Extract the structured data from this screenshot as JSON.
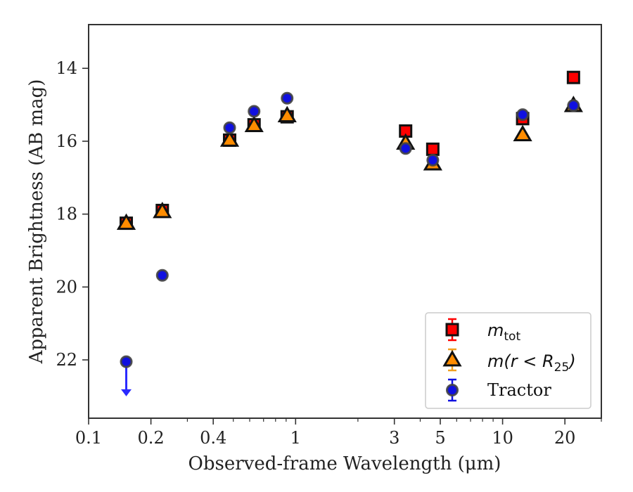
{
  "chart_data": {
    "type": "scatter",
    "xlabel": "Observed-frame Wavelength (μm)",
    "ylabel": "Apparent Brightness (AB mag)",
    "x_scale": "log",
    "xlim": [
      0.1,
      30
    ],
    "ylim": [
      23.6,
      12.8
    ],
    "y_inverted": true,
    "x_ticks": [
      0.1,
      0.2,
      0.4,
      1,
      3,
      5,
      10,
      20
    ],
    "x_tick_labels": [
      "0.1",
      "0.2",
      "0.4",
      "1",
      "3",
      "5",
      "10",
      "20"
    ],
    "y_ticks": [
      14,
      16,
      18,
      20,
      22
    ],
    "y_tick_labels": [
      "14",
      "16",
      "18",
      "20",
      "22"
    ],
    "grid": false,
    "legend_position": "lower-right",
    "series": [
      {
        "name": "m_tot",
        "marker": "square",
        "color": "#ff0000",
        "edge": "#111111",
        "x": [
          0.152,
          0.227,
          0.48,
          0.63,
          0.91,
          3.4,
          4.6,
          12.5,
          22.0
        ],
        "y": [
          18.25,
          17.9,
          15.97,
          15.55,
          15.33,
          15.72,
          16.22,
          15.38,
          14.25
        ],
        "err": [
          0.1,
          0.1,
          0.05,
          0.05,
          0.05,
          0.05,
          0.05,
          0.1,
          0.05
        ]
      },
      {
        "name": "m(r < R_25)",
        "marker": "triangle",
        "color": "#ff8c00",
        "edge": "#111111",
        "x": [
          0.152,
          0.227,
          0.48,
          0.63,
          0.91,
          3.4,
          4.6,
          12.5,
          22.0
        ],
        "y": [
          18.25,
          17.93,
          15.97,
          15.57,
          15.3,
          16.05,
          16.62,
          15.82,
          15.02
        ],
        "err": [
          0.1,
          0.1,
          0.05,
          0.05,
          0.05,
          0.05,
          0.05,
          0.05,
          0.05
        ]
      },
      {
        "name": "Tractor",
        "marker": "circle",
        "color": "#1010e0",
        "edge": "#444444",
        "x": [
          0.152,
          0.227,
          0.48,
          0.63,
          0.91,
          3.4,
          4.6,
          12.5,
          22.0
        ],
        "y": [
          22.05,
          19.68,
          15.63,
          15.18,
          14.82,
          16.2,
          16.52,
          15.27,
          15.02
        ],
        "err": [
          0.1,
          0.1,
          0.05,
          0.05,
          0.05,
          0.05,
          0.05,
          0.05,
          0.05
        ],
        "upper_limits": [
          true,
          false,
          false,
          false,
          false,
          false,
          false,
          false,
          false
        ]
      }
    ]
  },
  "legend": {
    "m_tot_symbol": "m",
    "m_tot_subscript": "tot",
    "m_r_symbol": "m",
    "m_r_paren_open": "(r < R",
    "m_r_subscript": "25",
    "m_r_paren_close": ")",
    "tractor_label": "Tractor"
  }
}
